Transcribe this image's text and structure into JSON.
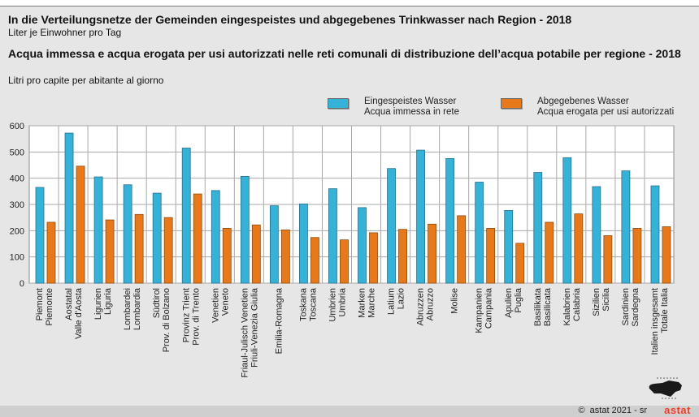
{
  "header": {
    "title_de": "In die Verteilungsnetze der Gemeinden eingespeistes und abgegebenes Trinkwasser nach Region - 2018",
    "subtitle_de": "Liter je Einwohner pro Tag",
    "title_it": "Acqua immessa e acqua erogata per usi autorizzati nelle reti comunali di distribuzione dell’acqua potabile per regione - 2018",
    "subtitle_it": "Litri pro capite per abitante al giorno"
  },
  "legend": [
    {
      "de": "Eingespeistes Wasser",
      "it": "Acqua immessa in rete",
      "color": "#35b2d8"
    },
    {
      "de": "Abgegebenes Wasser",
      "it": "Acqua erogata per usi autorizzati",
      "color": "#e8791a"
    }
  ],
  "footer": {
    "copyright_symbol": "©",
    "credit": "astat 2021 - sr",
    "brand": "astat"
  },
  "chart_data": {
    "type": "bar",
    "title": "In die Verteilungsnetze der Gemeinden eingespeistes und abgegebenes Trinkwasser nach Region - 2018",
    "xlabel": "",
    "ylabel": "Liter je Einwohner pro Tag",
    "ylim": [
      0,
      600
    ],
    "yticks": [
      0,
      100,
      200,
      300,
      400,
      500,
      600
    ],
    "grid": true,
    "legend_position": "top-right",
    "categories": [
      [
        "Piemont",
        "Piemonte"
      ],
      [
        "Aostatal",
        "Valle d'Aosta"
      ],
      [
        "Ligurien",
        "Liguria"
      ],
      [
        "Lombardei",
        "Lombardia"
      ],
      [
        "Südtirol",
        "Prov. di Bolzano"
      ],
      [
        "Provinz Trient",
        "Prov. di Trento"
      ],
      [
        "Venetien",
        "Veneto"
      ],
      [
        "Friaul-Julisch Venetien",
        "Friuli-Venezia Giulia"
      ],
      [
        "Emilia-Romagna"
      ],
      [
        "Toskana",
        "Toscana"
      ],
      [
        "Umbrien",
        "Umbria"
      ],
      [
        "Marken",
        "Marche"
      ],
      [
        "Latium",
        "Lazio"
      ],
      [
        "Abruzzen",
        "Abruzzo"
      ],
      [
        "Molise"
      ],
      [
        "Kampanien",
        "Campania"
      ],
      [
        "Apulien",
        "Puglia"
      ],
      [
        "Basilikata",
        "Basilicata"
      ],
      [
        "Kalabrien",
        "Calabria"
      ],
      [
        "Sizilien",
        "Sicilia"
      ],
      [
        "Sardinien",
        "Sardegna"
      ],
      [
        "Italien insgesamt",
        "Totale Italia"
      ]
    ],
    "series": [
      {
        "name": "Eingespeistes Wasser / Acqua immessa in rete",
        "color": "#35b2d8",
        "values": [
          365,
          572,
          405,
          375,
          343,
          515,
          353,
          407,
          295,
          302,
          360,
          288,
          437,
          507,
          475,
          385,
          277,
          422,
          478,
          368,
          428,
          371
        ]
      },
      {
        "name": "Abgegebenes Wasser / Acqua erogata per usi autorizzati",
        "color": "#e8791a",
        "values": [
          232,
          446,
          241,
          262,
          250,
          340,
          209,
          222,
          203,
          174,
          165,
          192,
          205,
          225,
          257,
          209,
          152,
          232,
          264,
          181,
          209,
          215
        ]
      }
    ]
  }
}
